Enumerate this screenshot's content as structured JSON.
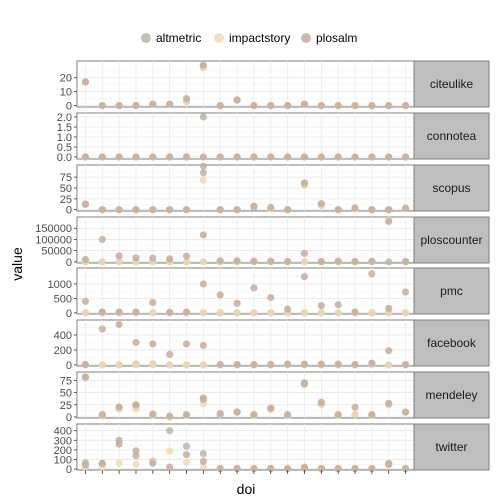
{
  "chart_data": {
    "type": "scatter",
    "xlabel": "doi",
    "ylabel": "value",
    "legend_position": "top",
    "series": [
      {
        "name": "altmetric",
        "color": "#b5b8a6"
      },
      {
        "name": "impactstory",
        "color": "#f1dbb3"
      },
      {
        "name": "plosalm",
        "color": "#c6ad9c"
      }
    ],
    "x_count": 20,
    "panels": [
      {
        "label": "citeulike",
        "ylim": [
          -1,
          32
        ],
        "ticks": [
          0,
          10,
          20
        ],
        "grid": true,
        "points": {
          "altmetric": [
            17,
            0,
            0,
            0,
            1,
            1,
            3,
            28,
            0,
            4,
            0,
            0,
            0,
            1,
            0,
            0,
            0,
            0,
            0,
            0
          ],
          "impactstory": [
            17,
            0,
            0,
            0,
            1,
            1,
            3,
            27,
            0,
            4,
            0,
            0,
            0,
            1,
            0,
            0,
            0,
            0,
            0,
            0
          ],
          "plosalm": [
            17,
            0,
            0,
            0,
            1,
            1,
            5,
            29,
            0,
            4,
            0,
            0,
            0,
            1,
            0,
            0,
            0,
            0,
            0,
            0
          ]
        }
      },
      {
        "label": "connotea",
        "ylim": [
          -0.1,
          2.2
        ],
        "ticks": [
          0.0,
          0.5,
          1.0,
          1.5,
          2.0
        ],
        "grid": true,
        "points": {
          "altmetric": [
            0,
            0,
            0,
            0,
            0,
            0,
            0,
            2,
            0,
            0,
            0,
            0,
            0,
            0,
            0,
            0,
            0,
            0,
            0,
            0
          ],
          "impactstory": [
            0,
            0,
            0,
            0,
            0,
            0,
            0,
            0,
            0,
            0,
            0,
            0,
            0,
            0,
            0,
            0,
            0,
            0,
            0,
            0
          ],
          "plosalm": [
            0,
            0,
            0,
            0,
            0,
            0,
            0,
            0,
            0,
            0,
            0,
            0,
            0,
            0,
            0,
            0,
            0,
            0,
            0,
            0
          ]
        }
      },
      {
        "label": "scopus",
        "ylim": [
          -3,
          103
        ],
        "ticks": [
          0,
          25,
          50,
          75
        ],
        "grid": true,
        "points": {
          "altmetric": [
            12,
            0,
            0,
            0,
            0,
            0,
            0,
            85,
            0,
            0,
            5,
            3,
            0,
            58,
            10,
            0,
            2,
            0,
            0,
            3
          ],
          "impactstory": [
            12,
            0,
            0,
            0,
            0,
            0,
            0,
            68,
            0,
            0,
            8,
            3,
            0,
            60,
            10,
            0,
            2,
            0,
            0,
            3
          ],
          "plosalm": [
            13,
            0,
            0,
            0,
            0,
            0,
            0,
            100,
            0,
            0,
            8,
            5,
            0,
            62,
            14,
            0,
            4,
            0,
            0,
            3
          ]
        }
      },
      {
        "label": "ploscounter",
        "ylim": [
          -5000,
          200000
        ],
        "ticks": [
          0,
          50000,
          100000,
          150000
        ],
        "tick_labels": [
          "0",
          "50000",
          "100000",
          "150000"
        ],
        "grid": true,
        "points": {
          "altmetric": [
            0,
            0,
            0,
            0,
            0,
            0,
            0,
            0,
            0,
            0,
            0,
            0,
            0,
            0,
            0,
            0,
            0,
            0,
            0,
            0
          ],
          "impactstory": [
            0,
            0,
            0,
            0,
            0,
            0,
            0,
            0,
            0,
            0,
            0,
            0,
            0,
            0,
            0,
            0,
            0,
            0,
            185000,
            0
          ],
          "plosalm": [
            10000,
            100000,
            27000,
            18000,
            17000,
            13000,
            26000,
            120000,
            5000,
            5000,
            3000,
            3000,
            2000,
            38000,
            2000,
            3000,
            2000,
            3000,
            180000,
            2000
          ]
        }
      },
      {
        "label": "pmc",
        "ylim": [
          -40,
          1550
        ],
        "ticks": [
          0,
          500,
          1000
        ],
        "grid": true,
        "points": {
          "altmetric": [
            0,
            0,
            0,
            0,
            0,
            0,
            0,
            0,
            0,
            0,
            0,
            0,
            0,
            0,
            0,
            0,
            0,
            0,
            0,
            0
          ],
          "impactstory": [
            0,
            0,
            0,
            0,
            0,
            0,
            0,
            0,
            0,
            0,
            0,
            0,
            0,
            0,
            0,
            0,
            0,
            0,
            0,
            0
          ],
          "plosalm": [
            400,
            30,
            30,
            30,
            360,
            20,
            30,
            1000,
            620,
            330,
            860,
            530,
            130,
            1250,
            250,
            280,
            30,
            1350,
            150,
            720
          ]
        }
      },
      {
        "label": "facebook",
        "ylim": [
          -15,
          600
        ],
        "ticks": [
          0,
          200,
          400
        ],
        "grid": true,
        "points": {
          "altmetric": [
            0,
            0,
            0,
            10,
            10,
            0,
            0,
            0,
            0,
            0,
            0,
            0,
            0,
            0,
            0,
            0,
            0,
            20,
            0,
            0
          ],
          "impactstory": [
            0,
            0,
            0,
            0,
            0,
            0,
            0,
            0,
            0,
            0,
            0,
            0,
            0,
            0,
            0,
            0,
            0,
            0,
            0,
            0
          ],
          "plosalm": [
            5,
            480,
            540,
            300,
            280,
            140,
            280,
            260,
            5,
            5,
            5,
            5,
            10,
            10,
            10,
            10,
            5,
            20,
            190,
            5
          ]
        }
      },
      {
        "label": "mendeley",
        "ylim": [
          -2,
          92
        ],
        "ticks": [
          0,
          25,
          50,
          75
        ],
        "grid": true,
        "points": {
          "altmetric": [
            80,
            2,
            20,
            22,
            4,
            0,
            3,
            39,
            5,
            10,
            3,
            16,
            3,
            70,
            26,
            3,
            5,
            3,
            25,
            10
          ],
          "impactstory": [
            80,
            2,
            16,
            16,
            4,
            0,
            3,
            27,
            5,
            10,
            3,
            16,
            3,
            66,
            26,
            3,
            5,
            3,
            25,
            10
          ],
          "plosalm": [
            82,
            5,
            20,
            25,
            6,
            2,
            5,
            36,
            7,
            10,
            5,
            18,
            5,
            68,
            30,
            5,
            20,
            5,
            28,
            10
          ]
        }
      },
      {
        "label": "twitter",
        "ylim": [
          -10,
          470
        ],
        "ticks": [
          0,
          100,
          200,
          300,
          400
        ],
        "grid": true,
        "points": {
          "altmetric": [
            65,
            50,
            300,
            190,
            80,
            400,
            240,
            160,
            5,
            5,
            5,
            5,
            5,
            20,
            5,
            5,
            5,
            5,
            60,
            5
          ],
          "impactstory": [
            20,
            20,
            60,
            50,
            70,
            190,
            70,
            30,
            5,
            5,
            5,
            5,
            5,
            5,
            5,
            5,
            5,
            5,
            40,
            5
          ],
          "plosalm": [
            40,
            60,
            260,
            140,
            60,
            20,
            150,
            80,
            5,
            5,
            5,
            5,
            5,
            10,
            5,
            5,
            5,
            5,
            50,
            5
          ]
        }
      }
    ]
  }
}
